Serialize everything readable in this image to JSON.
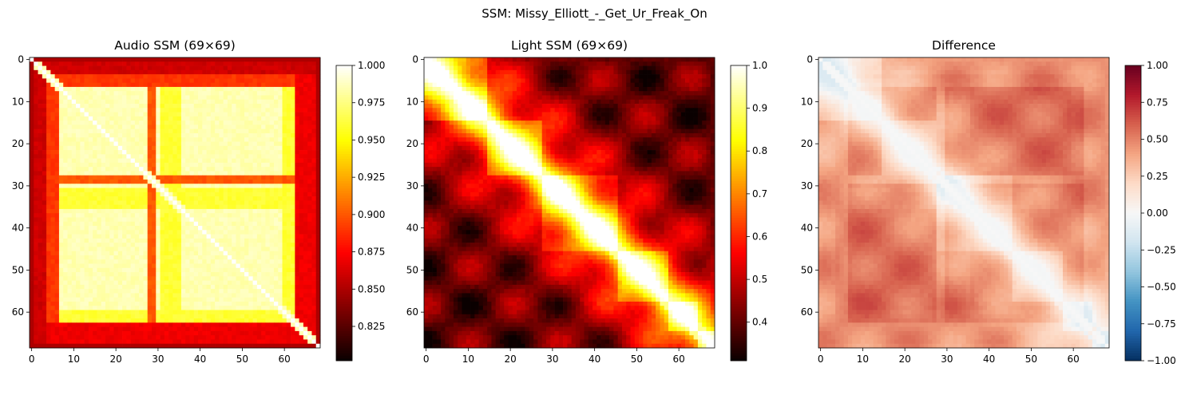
{
  "suptitle": "SSM: Missy_Elliott_-_Get_Ur_Freak_On",
  "chart_data": [
    {
      "type": "heatmap",
      "title": "Audio SSM (69×69)",
      "colormap": "hot",
      "size": 69,
      "xticks": [
        0,
        10,
        20,
        30,
        40,
        50,
        60
      ],
      "yticks": [
        0,
        10,
        20,
        30,
        40,
        50,
        60
      ],
      "colorbar": {
        "vmin": 0.802,
        "vmax": 1.0,
        "ticks": [
          0.825,
          0.85,
          0.875,
          0.9,
          0.925,
          0.95,
          0.975,
          1.0
        ],
        "tick_labels": [
          "0.825",
          "0.850",
          "0.875",
          "0.900",
          "0.925",
          "0.950",
          "0.975",
          "1.000"
        ]
      },
      "segments": [
        {
          "start": 0,
          "end": 3,
          "level": 0.86
        },
        {
          "start": 4,
          "end": 6,
          "level": 0.89
        },
        {
          "start": 7,
          "end": 27,
          "level": 0.985
        },
        {
          "start": 28,
          "end": 29,
          "level": 0.9
        },
        {
          "start": 30,
          "end": 30,
          "level": 0.995
        },
        {
          "start": 31,
          "end": 35,
          "level": 0.96
        },
        {
          "start": 36,
          "end": 59,
          "level": 0.985
        },
        {
          "start": 60,
          "end": 62,
          "level": 0.96
        },
        {
          "start": 63,
          "end": 68,
          "level": 0.87
        }
      ]
    },
    {
      "type": "heatmap",
      "title": "Light SSM (69×69)",
      "colormap": "hot",
      "size": 69,
      "xticks": [
        0,
        10,
        20,
        30,
        40,
        50,
        60
      ],
      "yticks": [
        0,
        10,
        20,
        30,
        40,
        50,
        60
      ],
      "colorbar": {
        "vmin": 0.31,
        "vmax": 1.0,
        "ticks": [
          0.4,
          0.5,
          0.6,
          0.7,
          0.8,
          0.9,
          1.0
        ],
        "tick_labels": [
          "0.4",
          "0.5",
          "0.6",
          "0.7",
          "0.8",
          "0.9",
          "1.0"
        ]
      },
      "segments": [
        {
          "start": 0,
          "end": 14,
          "level": 0.95
        },
        {
          "start": 15,
          "end": 27,
          "level": 0.78
        },
        {
          "start": 28,
          "end": 45,
          "level": 0.74
        },
        {
          "start": 46,
          "end": 57,
          "level": 0.7
        },
        {
          "start": 58,
          "end": 64,
          "level": 0.72
        },
        {
          "start": 65,
          "end": 68,
          "level": 0.9
        }
      ]
    },
    {
      "type": "heatmap",
      "title": "Difference",
      "colormap": "RdBu_r",
      "size": 69,
      "xticks": [
        0,
        10,
        20,
        30,
        40,
        50,
        60
      ],
      "yticks": [
        0,
        10,
        20,
        30,
        40,
        50,
        60
      ],
      "colorbar": {
        "vmin": -1.0,
        "vmax": 1.0,
        "ticks": [
          -1.0,
          -0.75,
          -0.5,
          -0.25,
          0.0,
          0.25,
          0.5,
          0.75,
          1.0
        ],
        "tick_labels": [
          "−1.00",
          "−0.75",
          "−0.50",
          "−0.25",
          "0.00",
          "0.25",
          "0.50",
          "0.75",
          "1.00"
        ]
      }
    }
  ]
}
